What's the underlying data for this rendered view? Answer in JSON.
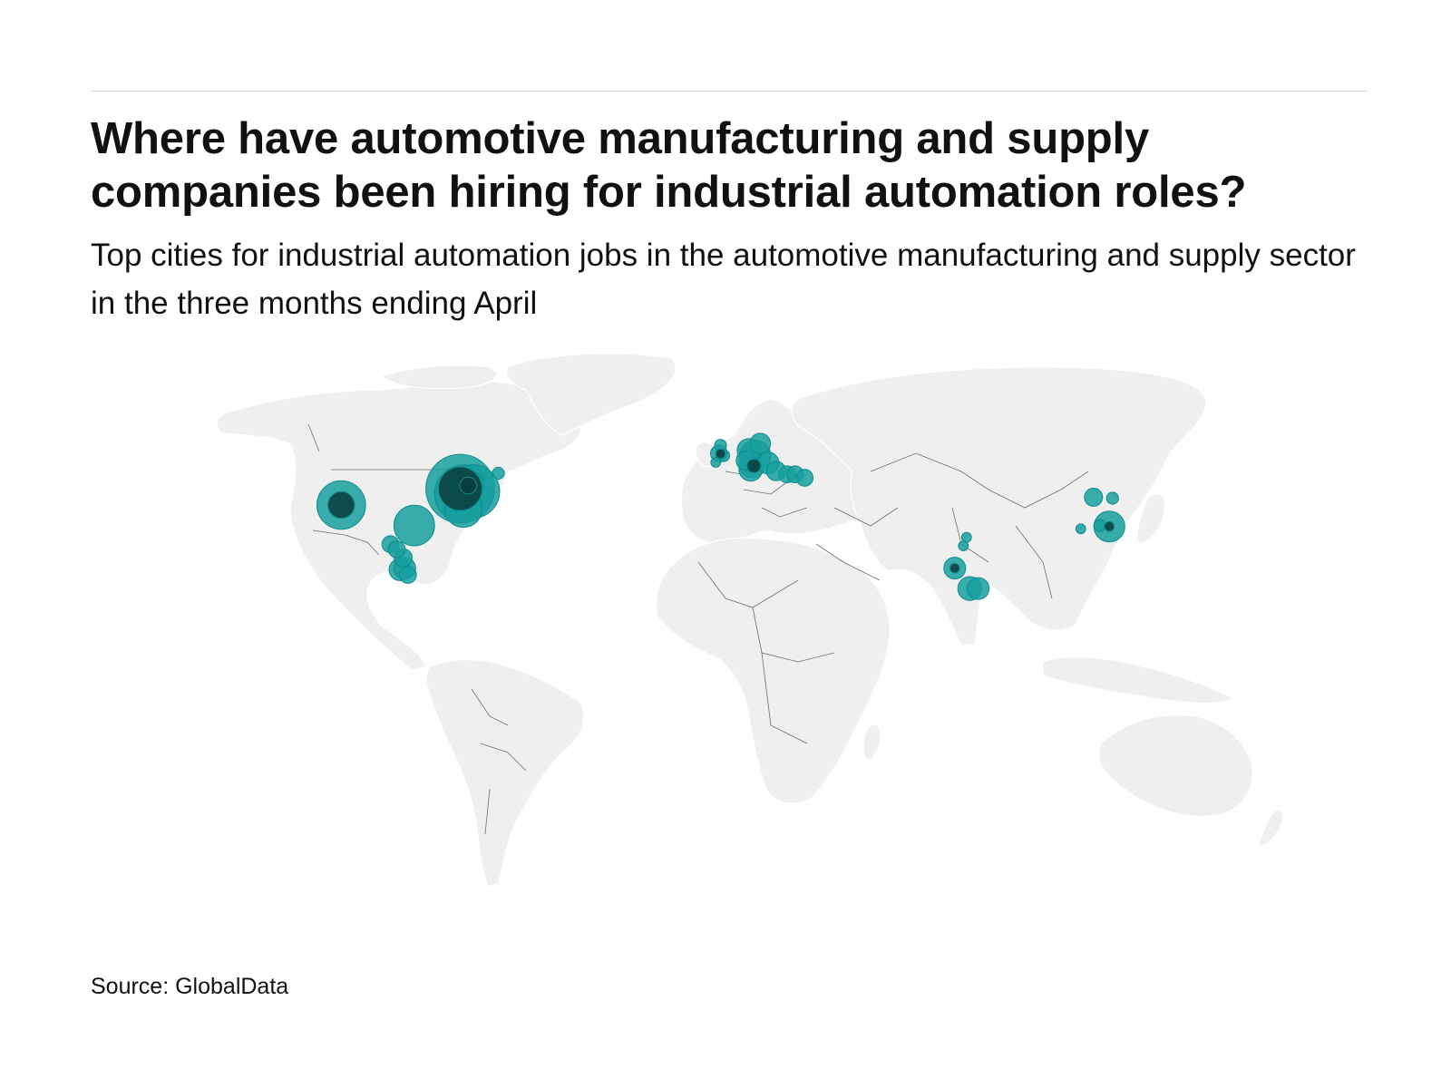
{
  "header": {
    "title": "Where have automotive manufacturing and supply companies been hiring for industrial automation roles?",
    "subtitle": "Top cities for industrial automation jobs in the automotive manufacturing and supply sector in the three months ending April"
  },
  "footer": {
    "source": "Source: GlobalData"
  },
  "colors": {
    "bubble": "#189f9f",
    "bubble_overlap": "#093b3b",
    "land": "#efefef",
    "border": "#6f6f6f",
    "rule": "#d8d8d8"
  },
  "chart_data": {
    "type": "bubble-map",
    "title": "Where have automotive manufacturing and supply companies been hiring for industrial automation roles?",
    "subtitle": "Top cities for industrial automation jobs in the automotive manufacturing and supply sector in the three months ending April",
    "projection": "equirectangular",
    "points": [
      {
        "region": "north-america",
        "lon": -83.0,
        "lat": 42.3,
        "value": 10
      },
      {
        "region": "north-america",
        "lon": -82.0,
        "lat": 40.8,
        "value": 7
      },
      {
        "region": "north-america",
        "lon": -79.0,
        "lat": 41.5,
        "value": 6
      },
      {
        "region": "north-america",
        "lon": -80.5,
        "lat": 43.2,
        "value": 2
      },
      {
        "region": "north-america",
        "lon": -82.0,
        "lat": 36.5,
        "value": 3
      },
      {
        "region": "north-america",
        "lon": -120.5,
        "lat": 37.5,
        "value": 5
      },
      {
        "region": "north-america",
        "lon": -97.5,
        "lat": 31.5,
        "value": 3.5
      },
      {
        "region": "north-america",
        "lon": -105.0,
        "lat": 26.0,
        "value": 0.6
      },
      {
        "region": "north-america",
        "lon": -103.0,
        "lat": 24.5,
        "value": 0.6
      },
      {
        "region": "north-america",
        "lon": -101.0,
        "lat": 22.0,
        "value": 0.7
      },
      {
        "region": "north-america",
        "lon": -102.0,
        "lat": 18.5,
        "value": 1.0
      },
      {
        "region": "north-america",
        "lon": -100.5,
        "lat": 19.0,
        "value": 1.0
      },
      {
        "region": "north-america",
        "lon": -99.5,
        "lat": 17.0,
        "value": 0.6
      },
      {
        "region": "north-america",
        "lon": -71.0,
        "lat": 46.8,
        "value": 0.3
      },
      {
        "region": "europe",
        "lon": -1.5,
        "lat": 52.6,
        "value": 0.6
      },
      {
        "region": "europe",
        "lon": -1.0,
        "lat": 55.0,
        "value": 0.3
      },
      {
        "region": "europe",
        "lon": 0.0,
        "lat": 52.0,
        "value": 0.3
      },
      {
        "region": "europe",
        "lon": -2.5,
        "lat": 50.0,
        "value": 0.2
      },
      {
        "region": "europe",
        "lon": 8.0,
        "lat": 53.5,
        "value": 1.2
      },
      {
        "region": "europe",
        "lon": 10.0,
        "lat": 52.0,
        "value": 2
      },
      {
        "region": "europe",
        "lon": 11.5,
        "lat": 55.5,
        "value": 0.9
      },
      {
        "region": "europe",
        "lon": 9.0,
        "lat": 49.5,
        "value": 1.5
      },
      {
        "region": "europe",
        "lon": 7.0,
        "lat": 50.5,
        "value": 0.8
      },
      {
        "region": "europe",
        "lon": 8.5,
        "lat": 48.0,
        "value": 1.2
      },
      {
        "region": "europe",
        "lon": 14.0,
        "lat": 49.8,
        "value": 1.0
      },
      {
        "region": "europe",
        "lon": 16.5,
        "lat": 47.5,
        "value": 0.8
      },
      {
        "region": "europe",
        "lon": 20.0,
        "lat": 46.5,
        "value": 0.6
      },
      {
        "region": "europe",
        "lon": 22.5,
        "lat": 46.5,
        "value": 0.6
      },
      {
        "region": "europe",
        "lon": 25.5,
        "lat": 45.5,
        "value": 0.6
      },
      {
        "region": "asia",
        "lon": 72.8,
        "lat": 19.0,
        "value": 1.0
      },
      {
        "region": "asia",
        "lon": 77.5,
        "lat": 13.0,
        "value": 1.2
      },
      {
        "region": "asia",
        "lon": 80.2,
        "lat": 13.0,
        "value": 1.0
      },
      {
        "region": "asia",
        "lon": 75.5,
        "lat": 25.5,
        "value": 0.2
      },
      {
        "region": "asia",
        "lon": 76.5,
        "lat": 28.0,
        "value": 0.2
      },
      {
        "region": "asia",
        "lon": 116.5,
        "lat": 39.8,
        "value": 0.7
      },
      {
        "region": "asia",
        "lon": 122.5,
        "lat": 39.5,
        "value": 0.3
      },
      {
        "region": "asia",
        "lon": 121.5,
        "lat": 31.2,
        "value": 2
      },
      {
        "region": "asia",
        "lon": 118.5,
        "lat": 31.5,
        "value": 0.3
      },
      {
        "region": "asia",
        "lon": 112.5,
        "lat": 30.5,
        "value": 0.2
      }
    ]
  }
}
